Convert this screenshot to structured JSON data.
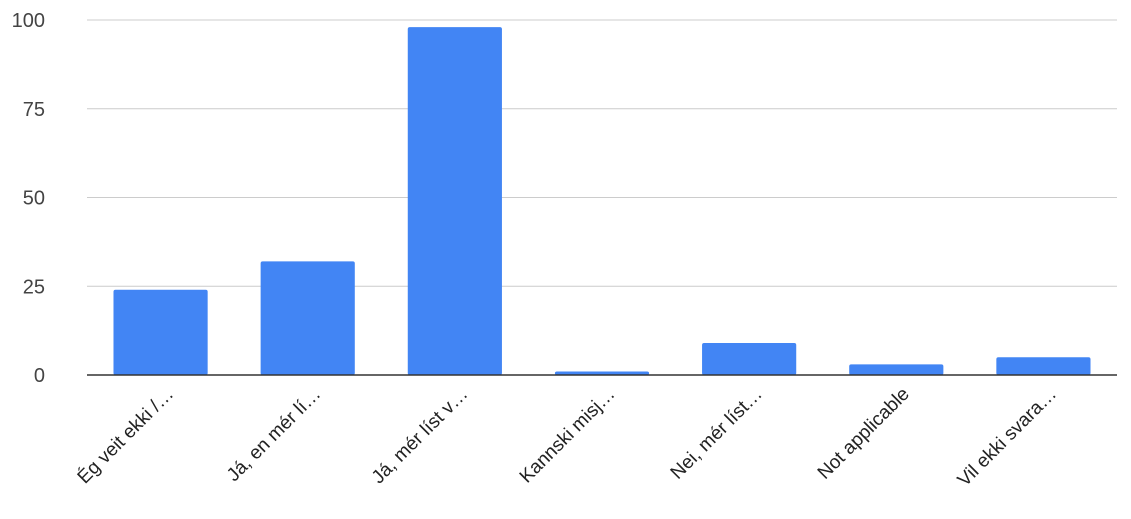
{
  "chart_data": {
    "type": "bar",
    "title": "",
    "xlabel": "",
    "ylabel": "",
    "categories": [
      "Ég veit ekki /…",
      "Já, en mér lí…",
      "Já, mér líst v…",
      "Kannski misj…",
      "Nei, mér líst…",
      "Not applicable",
      "Vil ekki svara…"
    ],
    "values": [
      24,
      32,
      98,
      1,
      9,
      3,
      5
    ],
    "ylim": [
      0,
      100
    ],
    "yticks": [
      "0",
      "25",
      "50",
      "75",
      "100"
    ],
    "grid": true,
    "legend": "none",
    "colors": {
      "bar": "#4285f4",
      "grid": "#cccccc",
      "axis": "#333333"
    }
  }
}
